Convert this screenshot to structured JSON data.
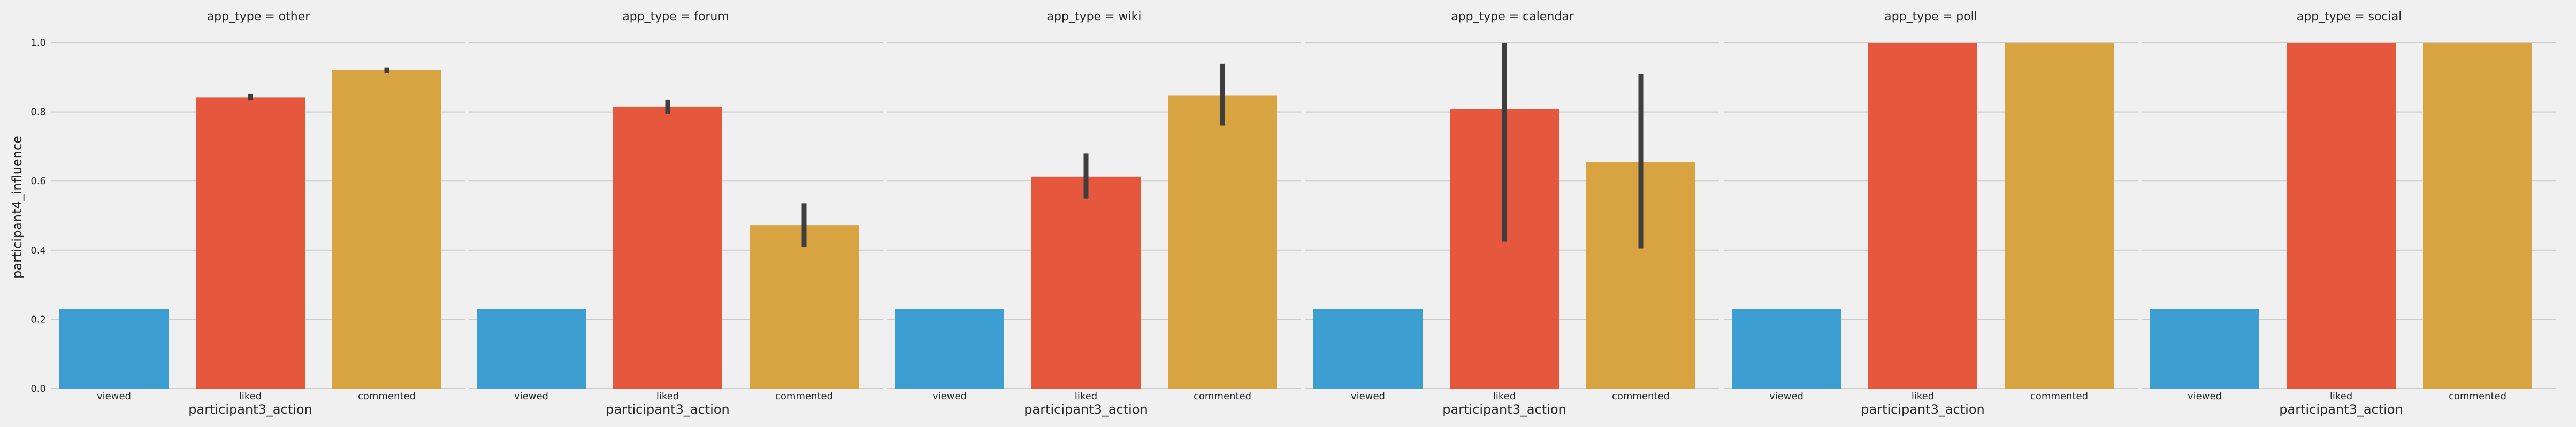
{
  "chart_data": {
    "type": "bar",
    "ylabel": "participant4_influence",
    "xlabel": "participant3_action",
    "ylim": [
      0,
      1.0
    ],
    "yticks": [
      "0.0",
      "0.2",
      "0.4",
      "0.6",
      "0.8",
      "1.0"
    ],
    "ytick_values": [
      0,
      0.2,
      0.4,
      0.6,
      0.8,
      1.0
    ],
    "categories": [
      "viewed",
      "liked",
      "commented"
    ],
    "colors": [
      "#3d9fd1",
      "#e5583d",
      "#d8a442"
    ],
    "error_bar_color": "#3e3e3e",
    "background": "#f0f0f0",
    "grid": true,
    "panels": [
      {
        "title": "app_type = other",
        "values": [
          0.23,
          0.842,
          0.92
        ],
        "errors": [
          null,
          [
            0.833,
            0.852
          ],
          [
            0.913,
            0.928
          ]
        ]
      },
      {
        "title": "app_type = forum",
        "values": [
          0.23,
          0.815,
          0.472
        ],
        "errors": [
          null,
          [
            0.795,
            0.835
          ],
          [
            0.41,
            0.535
          ]
        ]
      },
      {
        "title": "app_type = wiki",
        "values": [
          0.23,
          0.613,
          0.848
        ],
        "errors": [
          null,
          [
            0.55,
            0.68
          ],
          [
            0.76,
            0.94
          ]
        ]
      },
      {
        "title": "app_type = calendar",
        "values": [
          0.23,
          0.808,
          0.655
        ],
        "errors": [
          null,
          [
            0.425,
            1.0
          ],
          [
            0.405,
            0.91
          ]
        ]
      },
      {
        "title": "app_type = poll",
        "values": [
          0.23,
          1.0,
          1.0
        ],
        "errors": [
          null,
          null,
          null
        ]
      },
      {
        "title": "app_type = social",
        "values": [
          0.23,
          1.0,
          1.0
        ],
        "errors": [
          null,
          null,
          null
        ]
      }
    ]
  }
}
